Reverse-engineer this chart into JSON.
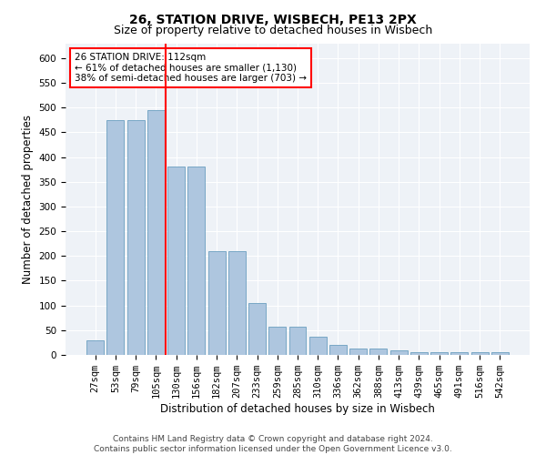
{
  "title1": "26, STATION DRIVE, WISBECH, PE13 2PX",
  "title2": "Size of property relative to detached houses in Wisbech",
  "xlabel": "Distribution of detached houses by size in Wisbech",
  "ylabel": "Number of detached properties",
  "categories": [
    "27sqm",
    "53sqm",
    "79sqm",
    "105sqm",
    "130sqm",
    "156sqm",
    "182sqm",
    "207sqm",
    "233sqm",
    "259sqm",
    "285sqm",
    "310sqm",
    "336sqm",
    "362sqm",
    "388sqm",
    "413sqm",
    "439sqm",
    "465sqm",
    "491sqm",
    "516sqm",
    "542sqm"
  ],
  "values": [
    30,
    475,
    475,
    495,
    380,
    380,
    210,
    210,
    105,
    57,
    57,
    37,
    20,
    13,
    12,
    10,
    6,
    5,
    5,
    5,
    5
  ],
  "bar_color": "#aec6df",
  "bar_edge_color": "#6a9fc0",
  "vline_x": 3.5,
  "vline_color": "red",
  "annotation_text": "26 STATION DRIVE: 112sqm\n← 61% of detached houses are smaller (1,130)\n38% of semi-detached houses are larger (703) →",
  "annotation_box_color": "white",
  "annotation_box_edge": "red",
  "footer": "Contains HM Land Registry data © Crown copyright and database right 2024.\nContains public sector information licensed under the Open Government Licence v3.0.",
  "ylim": [
    0,
    630
  ],
  "yticks": [
    0,
    50,
    100,
    150,
    200,
    250,
    300,
    350,
    400,
    450,
    500,
    550,
    600
  ],
  "bg_color": "#eef2f7",
  "title1_fontsize": 10,
  "title2_fontsize": 9,
  "xlabel_fontsize": 8.5,
  "ylabel_fontsize": 8.5,
  "tick_fontsize": 7.5,
  "annot_fontsize": 7.5,
  "footer_fontsize": 6.5
}
